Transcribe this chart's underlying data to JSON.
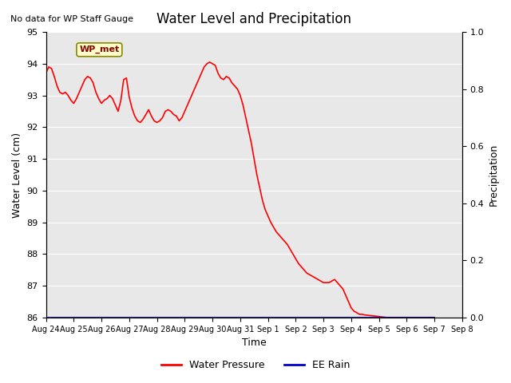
{
  "title": "Water Level and Precipitation",
  "no_data_text": "No data for WP Staff Gauge",
  "wp_met_label": "WP_met",
  "ylabel_left": "Water Level (cm)",
  "ylabel_right": "Precipitation",
  "xlabel": "Time",
  "ylim_left": [
    86.0,
    95.0
  ],
  "ylim_right": [
    0.0,
    1.0
  ],
  "yticks_left": [
    86.0,
    87.0,
    88.0,
    89.0,
    90.0,
    91.0,
    92.0,
    93.0,
    94.0,
    95.0
  ],
  "yticks_right": [
    0.0,
    0.2,
    0.4,
    0.6,
    0.8,
    1.0
  ],
  "xtick_labels": [
    "Aug 24",
    "Aug 25",
    "Aug 26",
    "Aug 27",
    "Aug 28",
    "Aug 29",
    "Aug 30",
    "Aug 31",
    "Sep 1",
    "Sep 2",
    "Sep 3",
    "Sep 4",
    "Sep 5",
    "Sep 6",
    "Sep 7",
    "Sep 8"
  ],
  "line_color_wp": "#ff0000",
  "line_color_rain": "#0000cc",
  "bg_color": "#e8e8e8",
  "legend_items": [
    "Water Pressure",
    "EE Rain"
  ],
  "legend_colors": [
    "#ff0000",
    "#0000cc"
  ],
  "wp_data_x": [
    0,
    0.1,
    0.2,
    0.3,
    0.4,
    0.5,
    0.6,
    0.7,
    0.8,
    0.9,
    1.0,
    1.1,
    1.2,
    1.3,
    1.4,
    1.5,
    1.6,
    1.7,
    1.8,
    1.9,
    2.0,
    2.1,
    2.2,
    2.3,
    2.4,
    2.5,
    2.6,
    2.7,
    2.8,
    2.9,
    3.0,
    3.1,
    3.2,
    3.3,
    3.4,
    3.5,
    3.6,
    3.7,
    3.8,
    3.9,
    4.0,
    4.1,
    4.2,
    4.3,
    4.4,
    4.5,
    4.6,
    4.7,
    4.8,
    4.9,
    5.0,
    5.1,
    5.2,
    5.3,
    5.4,
    5.5,
    5.6,
    5.7,
    5.8,
    5.9,
    6.0,
    6.1,
    6.2,
    6.3,
    6.4,
    6.5,
    6.6,
    6.7,
    6.8,
    6.9,
    7.0,
    7.1,
    7.2,
    7.3,
    7.4,
    7.5,
    7.6,
    7.7,
    7.8,
    7.9,
    8.0,
    8.1,
    8.2,
    8.3,
    8.4,
    8.5,
    8.6,
    8.7,
    8.8,
    8.9,
    9.0,
    9.1,
    9.2,
    9.3,
    9.4,
    9.5,
    9.6,
    9.7,
    9.8,
    9.9,
    10.0,
    10.1,
    10.2,
    10.3,
    10.4,
    10.5,
    10.6,
    10.7,
    10.8,
    10.9,
    11.0,
    11.1,
    11.2,
    11.3,
    11.4,
    11.5,
    11.6,
    11.7,
    11.8,
    11.9,
    12.0,
    12.1,
    12.2,
    12.3,
    12.4,
    12.5,
    12.6,
    12.7,
    12.8,
    12.9,
    13.0,
    13.1,
    13.2,
    13.3,
    13.4,
    13.5,
    13.6,
    13.7,
    13.8,
    13.9,
    14.0
  ],
  "wp_data_y": [
    93.7,
    93.9,
    93.85,
    93.6,
    93.3,
    93.1,
    93.05,
    93.1,
    93.0,
    92.85,
    92.75,
    92.9,
    93.1,
    93.3,
    93.5,
    93.6,
    93.55,
    93.4,
    93.1,
    92.9,
    92.75,
    92.85,
    92.9,
    93.0,
    92.9,
    92.7,
    92.5,
    92.85,
    93.5,
    93.55,
    92.95,
    92.6,
    92.35,
    92.2,
    92.15,
    92.25,
    92.4,
    92.55,
    92.35,
    92.2,
    92.15,
    92.2,
    92.3,
    92.5,
    92.55,
    92.5,
    92.4,
    92.35,
    92.2,
    92.3,
    92.5,
    92.7,
    92.9,
    93.1,
    93.3,
    93.5,
    93.7,
    93.9,
    94.0,
    94.05,
    94.0,
    93.95,
    93.7,
    93.55,
    93.5,
    93.6,
    93.55,
    93.4,
    93.3,
    93.2,
    93.0,
    92.7,
    92.3,
    91.9,
    91.5,
    91.0,
    90.5,
    90.1,
    89.7,
    89.4,
    89.2,
    89.0,
    88.85,
    88.7,
    88.6,
    88.5,
    88.4,
    88.3,
    88.15,
    88.0,
    87.85,
    87.7,
    87.6,
    87.5,
    87.4,
    87.35,
    87.3,
    87.25,
    87.2,
    87.15,
    87.1,
    87.1,
    87.1,
    87.15,
    87.2,
    87.1,
    87.0,
    86.9,
    86.7,
    86.5,
    86.3,
    86.2,
    86.15,
    86.1,
    86.1,
    86.08,
    86.07,
    86.06,
    86.05,
    86.04,
    86.03,
    86.02,
    86.01,
    86.0,
    86.0,
    86.0,
    86.0,
    86.0,
    86.0,
    86.0,
    86.0,
    86.0,
    86.0,
    86.0,
    86.0,
    86.0,
    86.0,
    86.0,
    86.0,
    86.0,
    86.0
  ]
}
